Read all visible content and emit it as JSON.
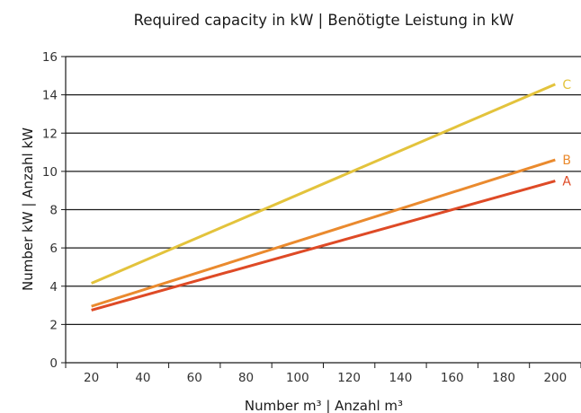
{
  "chart_data": {
    "type": "line",
    "title": "Required capacity in kW  |  Benötigte Leistung in kW",
    "xlabel": "Number m³  |  Anzahl m³",
    "ylabel": "Number kW  |  Anzahl kW",
    "xlim": [
      10,
      210
    ],
    "ylim": [
      0,
      16
    ],
    "x_ticks": [
      20,
      40,
      60,
      80,
      100,
      120,
      140,
      160,
      180,
      200
    ],
    "y_ticks": [
      0,
      2,
      4,
      6,
      8,
      10,
      12,
      14,
      16
    ],
    "grid": "horizontal",
    "legend": "inline labels at line ends (right)",
    "series": [
      {
        "name": "C",
        "color": "#e3c33c",
        "points": [
          [
            20,
            4.15
          ],
          [
            200,
            14.55
          ]
        ]
      },
      {
        "name": "B",
        "color": "#ea8a2e",
        "points": [
          [
            20,
            2.95
          ],
          [
            200,
            10.6
          ]
        ]
      },
      {
        "name": "A",
        "color": "#de4a26",
        "points": [
          [
            20,
            2.75
          ],
          [
            200,
            9.5
          ]
        ]
      }
    ]
  }
}
